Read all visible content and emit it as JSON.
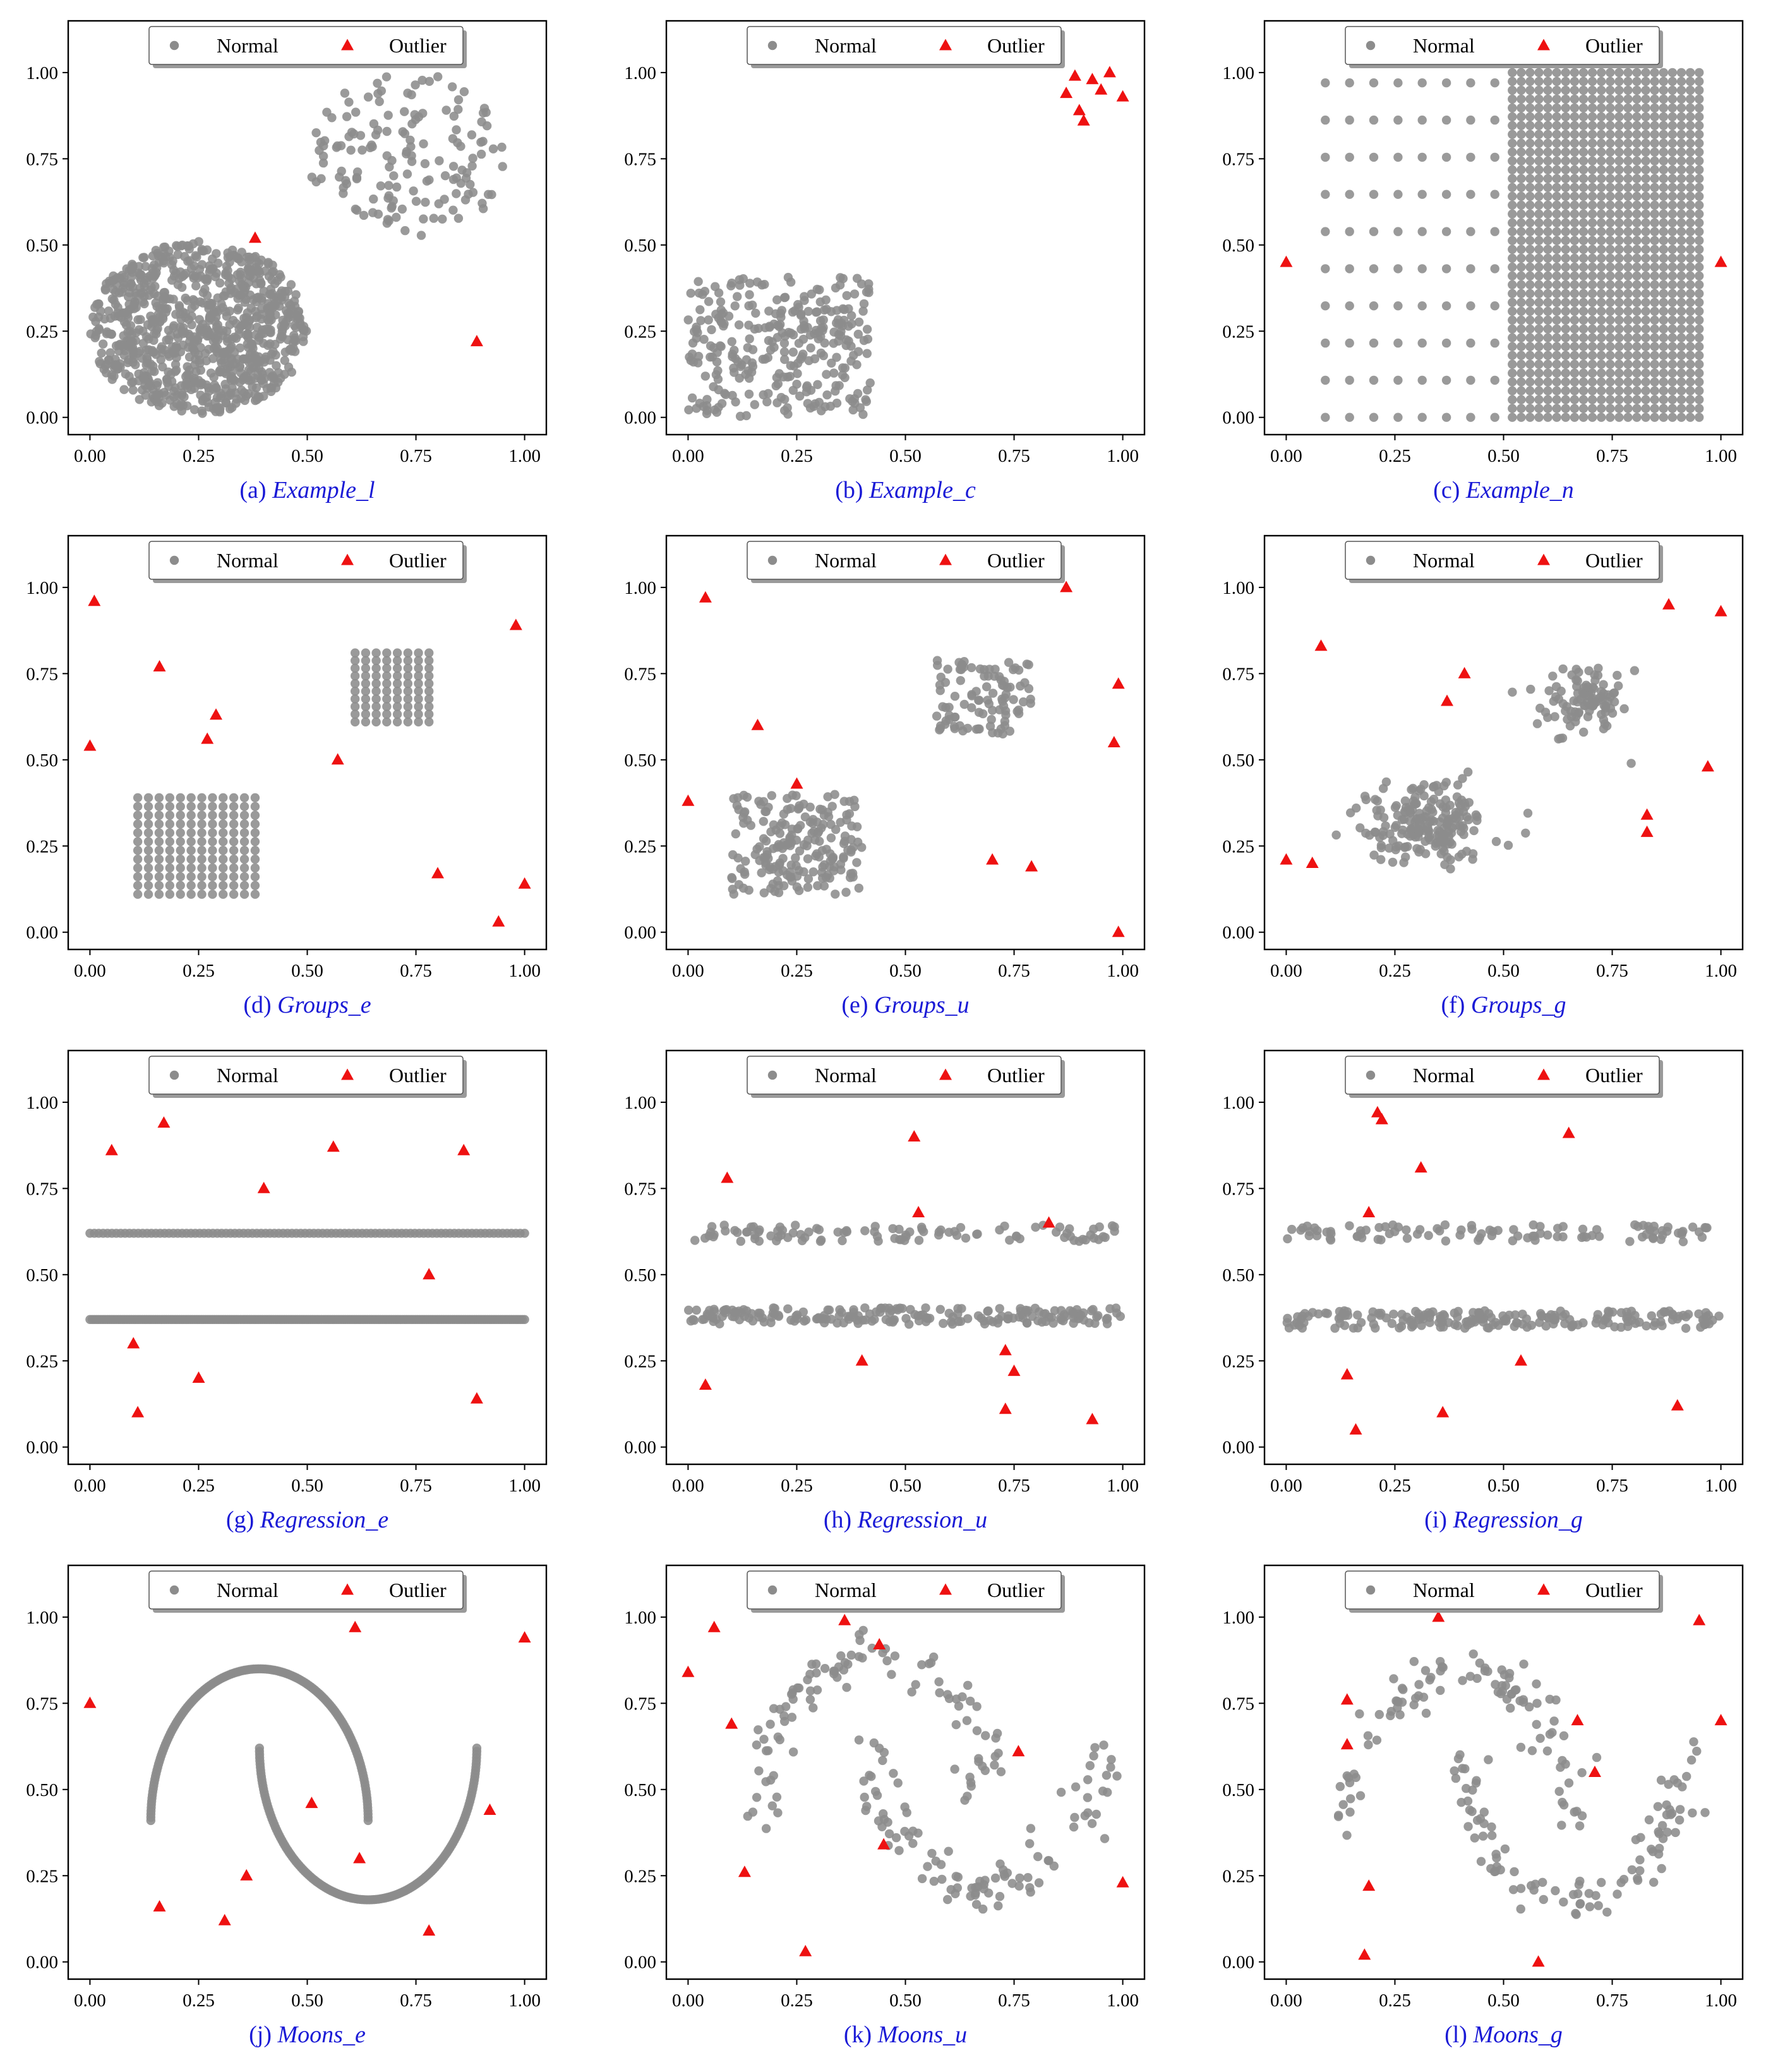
{
  "legend": {
    "normal_label": "Normal",
    "outlier_label": "Outlier"
  },
  "colors": {
    "normal": "#8c8c8c",
    "outlier": "#ee1111",
    "caption": "#1a1ad6",
    "axis": "#000000"
  },
  "chart_data": [
    {
      "id": "a",
      "type": "scatter",
      "caption_prefix": "(a) ",
      "caption_name": "Example_l",
      "xlim": [
        -0.05,
        1.05
      ],
      "ylim": [
        -0.05,
        1.15
      ],
      "xticks": [
        0.0,
        0.25,
        0.5,
        0.75,
        1.0
      ],
      "yticks": [
        0.0,
        0.25,
        0.5,
        0.75,
        1.0
      ],
      "normal": {
        "generator": "two_disks",
        "clusters": [
          {
            "center": [
              0.25,
              0.26
            ],
            "rx": 0.25,
            "ry": 0.25,
            "n": 900,
            "dense": true
          },
          {
            "center": [
              0.73,
              0.76
            ],
            "rx": 0.23,
            "ry": 0.24,
            "n": 150,
            "dense": false
          }
        ]
      },
      "outliers": [
        [
          0.38,
          0.52
        ],
        [
          0.89,
          0.22
        ]
      ]
    },
    {
      "id": "b",
      "type": "scatter",
      "caption_prefix": "(b) ",
      "caption_name": "Example_c",
      "xlim": [
        -0.05,
        1.05
      ],
      "ylim": [
        -0.05,
        1.15
      ],
      "xticks": [
        0.0,
        0.25,
        0.5,
        0.75,
        1.0
      ],
      "yticks": [
        0.0,
        0.25,
        0.5,
        0.75,
        1.0
      ],
      "normal": {
        "generator": "uniform_box",
        "x_range": [
          0.0,
          0.42
        ],
        "y_range": [
          0.0,
          0.41
        ],
        "n": 300
      },
      "outliers": [
        [
          0.87,
          0.94
        ],
        [
          0.89,
          0.99
        ],
        [
          0.9,
          0.89
        ],
        [
          0.91,
          0.86
        ],
        [
          0.93,
          0.98
        ],
        [
          0.95,
          0.95
        ],
        [
          0.97,
          1.0
        ],
        [
          1.0,
          0.93
        ]
      ]
    },
    {
      "id": "c",
      "type": "scatter",
      "caption_prefix": "(c) ",
      "caption_name": "Example_n",
      "xlim": [
        -0.05,
        1.05
      ],
      "ylim": [
        -0.05,
        1.15
      ],
      "xticks": [
        0.0,
        0.25,
        0.5,
        0.75,
        1.0
      ],
      "yticks": [
        0.0,
        0.25,
        0.5,
        0.75,
        1.0
      ],
      "normal": {
        "generator": "grids",
        "grids": [
          {
            "x_range": [
              0.09,
              0.48
            ],
            "y_range": [
              0.0,
              0.97
            ],
            "nx": 8,
            "ny": 10
          },
          {
            "x_range": [
              0.52,
              0.95
            ],
            "y_range": [
              0.0,
              1.0
            ],
            "nx": 22,
            "ny": 40
          }
        ]
      },
      "outliers": [
        [
          0.0,
          0.45
        ],
        [
          1.0,
          0.45
        ]
      ]
    },
    {
      "id": "d",
      "type": "scatter",
      "caption_prefix": "(d) ",
      "caption_name": "Groups_e",
      "xlim": [
        -0.05,
        1.05
      ],
      "ylim": [
        -0.05,
        1.15
      ],
      "xticks": [
        0.0,
        0.25,
        0.5,
        0.75,
        1.0
      ],
      "yticks": [
        0.0,
        0.25,
        0.5,
        0.75,
        1.0
      ],
      "normal": {
        "generator": "grids",
        "grids": [
          {
            "x_range": [
              0.11,
              0.38
            ],
            "y_range": [
              0.11,
              0.39
            ],
            "nx": 12,
            "ny": 12
          },
          {
            "x_range": [
              0.61,
              0.78
            ],
            "y_range": [
              0.61,
              0.81
            ],
            "nx": 8,
            "ny": 10
          }
        ]
      },
      "outliers": [
        [
          0.0,
          0.54
        ],
        [
          0.01,
          0.96
        ],
        [
          0.16,
          0.77
        ],
        [
          0.27,
          0.56
        ],
        [
          0.29,
          0.63
        ],
        [
          0.57,
          0.5
        ],
        [
          0.8,
          0.17
        ],
        [
          0.94,
          0.03
        ],
        [
          0.98,
          0.89
        ],
        [
          1.0,
          0.14
        ]
      ]
    },
    {
      "id": "e",
      "type": "scatter",
      "caption_prefix": "(e) ",
      "caption_name": "Groups_u",
      "xlim": [
        -0.05,
        1.05
      ],
      "ylim": [
        -0.05,
        1.15
      ],
      "xticks": [
        0.0,
        0.25,
        0.5,
        0.75,
        1.0
      ],
      "yticks": [
        0.0,
        0.25,
        0.5,
        0.75,
        1.0
      ],
      "normal": {
        "generator": "uniform_boxes",
        "boxes": [
          {
            "x_range": [
              0.1,
              0.4
            ],
            "y_range": [
              0.11,
              0.4
            ],
            "n": 200
          },
          {
            "x_range": [
              0.57,
              0.79
            ],
            "y_range": [
              0.57,
              0.79
            ],
            "n": 100
          }
        ]
      },
      "outliers": [
        [
          0.0,
          0.38
        ],
        [
          0.04,
          0.97
        ],
        [
          0.16,
          0.6
        ],
        [
          0.25,
          0.43
        ],
        [
          0.7,
          0.21
        ],
        [
          0.79,
          0.19
        ],
        [
          0.87,
          1.0
        ],
        [
          0.98,
          0.55
        ],
        [
          0.99,
          0.72
        ],
        [
          0.99,
          0.0
        ]
      ]
    },
    {
      "id": "f",
      "type": "scatter",
      "caption_prefix": "(f) ",
      "caption_name": "Groups_g",
      "xlim": [
        -0.05,
        1.05
      ],
      "ylim": [
        -0.05,
        1.15
      ],
      "xticks": [
        0.0,
        0.25,
        0.5,
        0.75,
        1.0
      ],
      "yticks": [
        0.0,
        0.25,
        0.5,
        0.75,
        1.0
      ],
      "normal": {
        "generator": "gaussians",
        "clusters": [
          {
            "mean": [
              0.32,
              0.31
            ],
            "sd": [
              0.07,
              0.06
            ],
            "n": 200
          },
          {
            "mean": [
              0.68,
              0.67
            ],
            "sd": [
              0.05,
              0.05
            ],
            "n": 100
          }
        ]
      },
      "outliers": [
        [
          0.0,
          0.21
        ],
        [
          0.06,
          0.2
        ],
        [
          0.08,
          0.83
        ],
        [
          0.37,
          0.67
        ],
        [
          0.41,
          0.75
        ],
        [
          0.83,
          0.29
        ],
        [
          0.83,
          0.34
        ],
        [
          0.88,
          0.95
        ],
        [
          0.97,
          0.48
        ],
        [
          1.0,
          0.93
        ]
      ]
    },
    {
      "id": "g",
      "type": "scatter",
      "caption_prefix": "(g) ",
      "caption_name": "Regression_e",
      "xlim": [
        -0.05,
        1.05
      ],
      "ylim": [
        -0.05,
        1.15
      ],
      "xticks": [
        0.0,
        0.25,
        0.5,
        0.75,
        1.0
      ],
      "yticks": [
        0.0,
        0.25,
        0.5,
        0.75,
        1.0
      ],
      "normal": {
        "generator": "lines",
        "lines": [
          {
            "y": 0.62,
            "x_range": [
              0.0,
              1.0
            ],
            "n": 100,
            "noise": 0
          },
          {
            "y": 0.37,
            "x_range": [
              0.0,
              1.0
            ],
            "n": 200,
            "noise": 0
          }
        ]
      },
      "outliers": [
        [
          0.05,
          0.86
        ],
        [
          0.1,
          0.3
        ],
        [
          0.11,
          0.1
        ],
        [
          0.17,
          0.94
        ],
        [
          0.25,
          0.2
        ],
        [
          0.4,
          0.75
        ],
        [
          0.56,
          0.87
        ],
        [
          0.78,
          0.5
        ],
        [
          0.86,
          0.86
        ],
        [
          0.89,
          0.14
        ]
      ]
    },
    {
      "id": "h",
      "type": "scatter",
      "caption_prefix": "(h) ",
      "caption_name": "Regression_u",
      "xlim": [
        -0.05,
        1.05
      ],
      "ylim": [
        -0.05,
        1.15
      ],
      "xticks": [
        0.0,
        0.25,
        0.5,
        0.75,
        1.0
      ],
      "yticks": [
        0.0,
        0.25,
        0.5,
        0.75,
        1.0
      ],
      "normal": {
        "generator": "lines",
        "lines": [
          {
            "y": 0.62,
            "x_range": [
              0.0,
              1.0
            ],
            "n": 100,
            "noise": 0.015
          },
          {
            "y": 0.38,
            "x_range": [
              0.0,
              1.0
            ],
            "n": 200,
            "noise": 0.015
          }
        ]
      },
      "outliers": [
        [
          0.04,
          0.18
        ],
        [
          0.09,
          0.78
        ],
        [
          0.4,
          0.25
        ],
        [
          0.52,
          0.9
        ],
        [
          0.53,
          0.68
        ],
        [
          0.73,
          0.11
        ],
        [
          0.73,
          0.28
        ],
        [
          0.75,
          0.22
        ],
        [
          0.83,
          0.65
        ],
        [
          0.93,
          0.08
        ]
      ]
    },
    {
      "id": "i",
      "type": "scatter",
      "caption_prefix": "(i) ",
      "caption_name": "Regression_g",
      "xlim": [
        -0.05,
        1.05
      ],
      "ylim": [
        -0.05,
        1.15
      ],
      "xticks": [
        0.0,
        0.25,
        0.5,
        0.75,
        1.0
      ],
      "yticks": [
        0.0,
        0.25,
        0.5,
        0.75,
        1.0
      ],
      "normal": {
        "generator": "lines",
        "lines": [
          {
            "y": 0.62,
            "x_range": [
              0.0,
              1.0
            ],
            "n": 100,
            "noise": 0.016
          },
          {
            "y": 0.37,
            "x_range": [
              0.0,
              1.0
            ],
            "n": 200,
            "noise": 0.016
          }
        ]
      },
      "outliers": [
        [
          0.14,
          0.21
        ],
        [
          0.16,
          0.05
        ],
        [
          0.19,
          0.68
        ],
        [
          0.21,
          0.97
        ],
        [
          0.22,
          0.95
        ],
        [
          0.31,
          0.81
        ],
        [
          0.36,
          0.1
        ],
        [
          0.54,
          0.25
        ],
        [
          0.65,
          0.91
        ],
        [
          0.9,
          0.12
        ]
      ]
    },
    {
      "id": "j",
      "type": "scatter",
      "caption_prefix": "(j) ",
      "caption_name": "Moons_e",
      "xlim": [
        -0.05,
        1.05
      ],
      "ylim": [
        -0.05,
        1.15
      ],
      "xticks": [
        0.0,
        0.25,
        0.5,
        0.75,
        1.0
      ],
      "yticks": [
        0.0,
        0.25,
        0.5,
        0.75,
        1.0
      ],
      "normal": {
        "generator": "moons",
        "upper": {
          "cx": 0.39,
          "cy": 0.41,
          "rx": 0.25,
          "ry": 0.44
        },
        "lower": {
          "cx": 0.64,
          "cy": 0.62,
          "rx": 0.25,
          "ry": 0.44
        },
        "n_per_moon": 150,
        "noise": 0
      },
      "outliers": [
        [
          0.0,
          0.75
        ],
        [
          0.16,
          0.16
        ],
        [
          0.31,
          0.12
        ],
        [
          0.36,
          0.25
        ],
        [
          0.51,
          0.46
        ],
        [
          0.61,
          0.97
        ],
        [
          0.62,
          0.3
        ],
        [
          0.78,
          0.09
        ],
        [
          0.92,
          0.44
        ],
        [
          1.0,
          0.94
        ]
      ]
    },
    {
      "id": "k",
      "type": "scatter",
      "caption_prefix": "(k) ",
      "caption_name": "Moons_u",
      "xlim": [
        -0.05,
        1.05
      ],
      "ylim": [
        -0.05,
        1.15
      ],
      "xticks": [
        0.0,
        0.25,
        0.5,
        0.75,
        1.0
      ],
      "yticks": [
        0.0,
        0.25,
        0.5,
        0.75,
        1.0
      ],
      "normal": {
        "generator": "moons",
        "upper": {
          "cx": 0.43,
          "cy": 0.45,
          "rx": 0.26,
          "ry": 0.45
        },
        "lower": {
          "cx": 0.69,
          "cy": 0.66,
          "rx": 0.27,
          "ry": 0.45
        },
        "n_per_moon": 100,
        "noise": 0.03
      },
      "outliers": [
        [
          0.0,
          0.84
        ],
        [
          0.06,
          0.97
        ],
        [
          0.1,
          0.69
        ],
        [
          0.13,
          0.26
        ],
        [
          0.27,
          0.03
        ],
        [
          0.36,
          0.99
        ],
        [
          0.44,
          0.92
        ],
        [
          0.45,
          0.34
        ],
        [
          0.76,
          0.61
        ],
        [
          1.0,
          0.23
        ]
      ]
    },
    {
      "id": "l",
      "type": "scatter",
      "caption_prefix": "(l) ",
      "caption_name": "Moons_g",
      "xlim": [
        -0.05,
        1.05
      ],
      "ylim": [
        -0.05,
        1.15
      ],
      "xticks": [
        0.0,
        0.25,
        0.5,
        0.75,
        1.0
      ],
      "yticks": [
        0.0,
        0.25,
        0.5,
        0.75,
        1.0
      ],
      "normal": {
        "generator": "moons",
        "upper": {
          "cx": 0.4,
          "cy": 0.41,
          "rx": 0.26,
          "ry": 0.43
        },
        "lower": {
          "cx": 0.66,
          "cy": 0.61,
          "rx": 0.25,
          "ry": 0.43
        },
        "n_per_moon": 100,
        "noise": 0.025
      },
      "outliers": [
        [
          0.14,
          0.76
        ],
        [
          0.14,
          0.63
        ],
        [
          0.19,
          0.22
        ],
        [
          0.18,
          0.02
        ],
        [
          0.35,
          1.0
        ],
        [
          0.58,
          0.0
        ],
        [
          0.67,
          0.7
        ],
        [
          0.71,
          0.55
        ],
        [
          0.95,
          0.99
        ],
        [
          1.0,
          0.7
        ]
      ]
    }
  ]
}
